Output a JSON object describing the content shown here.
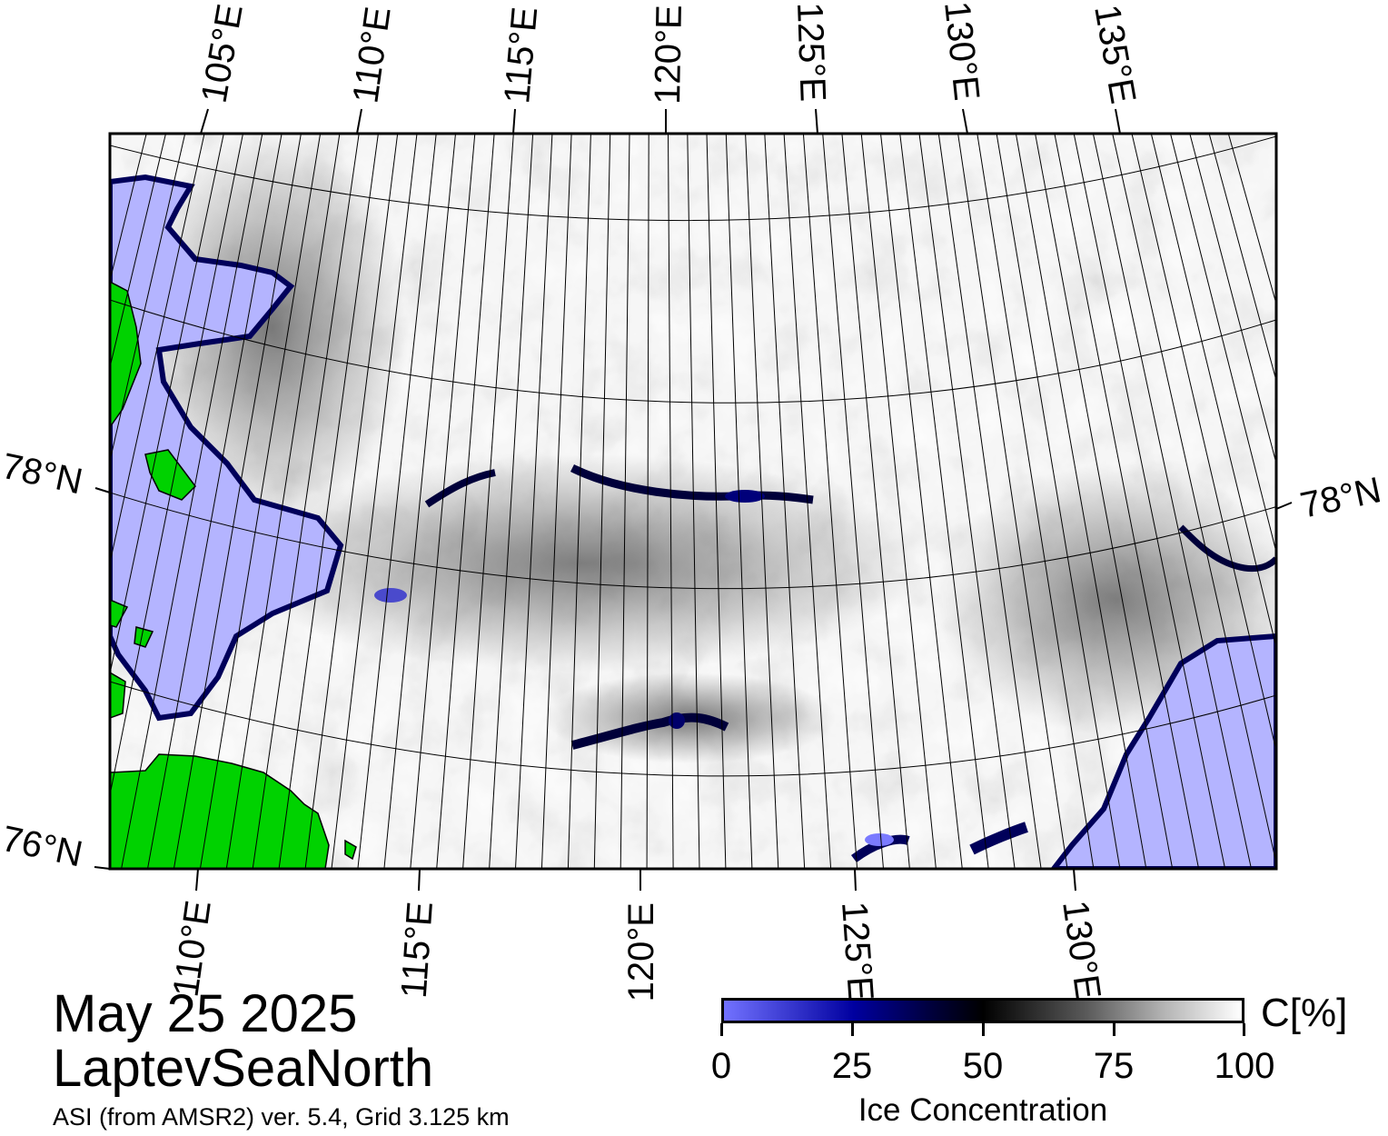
{
  "map": {
    "title_date": "May 25 2025",
    "region": "LaptevSeaNorth",
    "source": "ASI (from AMSR2) ver. 5.4,  Grid 3.125 km",
    "top_lon_labels": [
      "105°E",
      "110°E",
      "115°E",
      "120°E",
      "125°E",
      "130°E",
      "135°E"
    ],
    "bottom_lon_labels": [
      "110°E",
      "115°E",
      "120°E",
      "125°E",
      "130°E"
    ],
    "lat_labels": {
      "left_78": "78°N",
      "right_78": "78°N",
      "left_76": "76°N"
    },
    "colors": {
      "land": "#00d200",
      "open_water": "#b4b4ff",
      "coast_gray": "#8c8c8c",
      "ice_dark": "#00004a",
      "ice_light": "#f4f4f4"
    }
  },
  "colorbar": {
    "title": "Ice Concentration",
    "unit": "C[%]",
    "ticks": [
      "0",
      "25",
      "50",
      "75",
      "100"
    ],
    "range": [
      0,
      100
    ]
  }
}
